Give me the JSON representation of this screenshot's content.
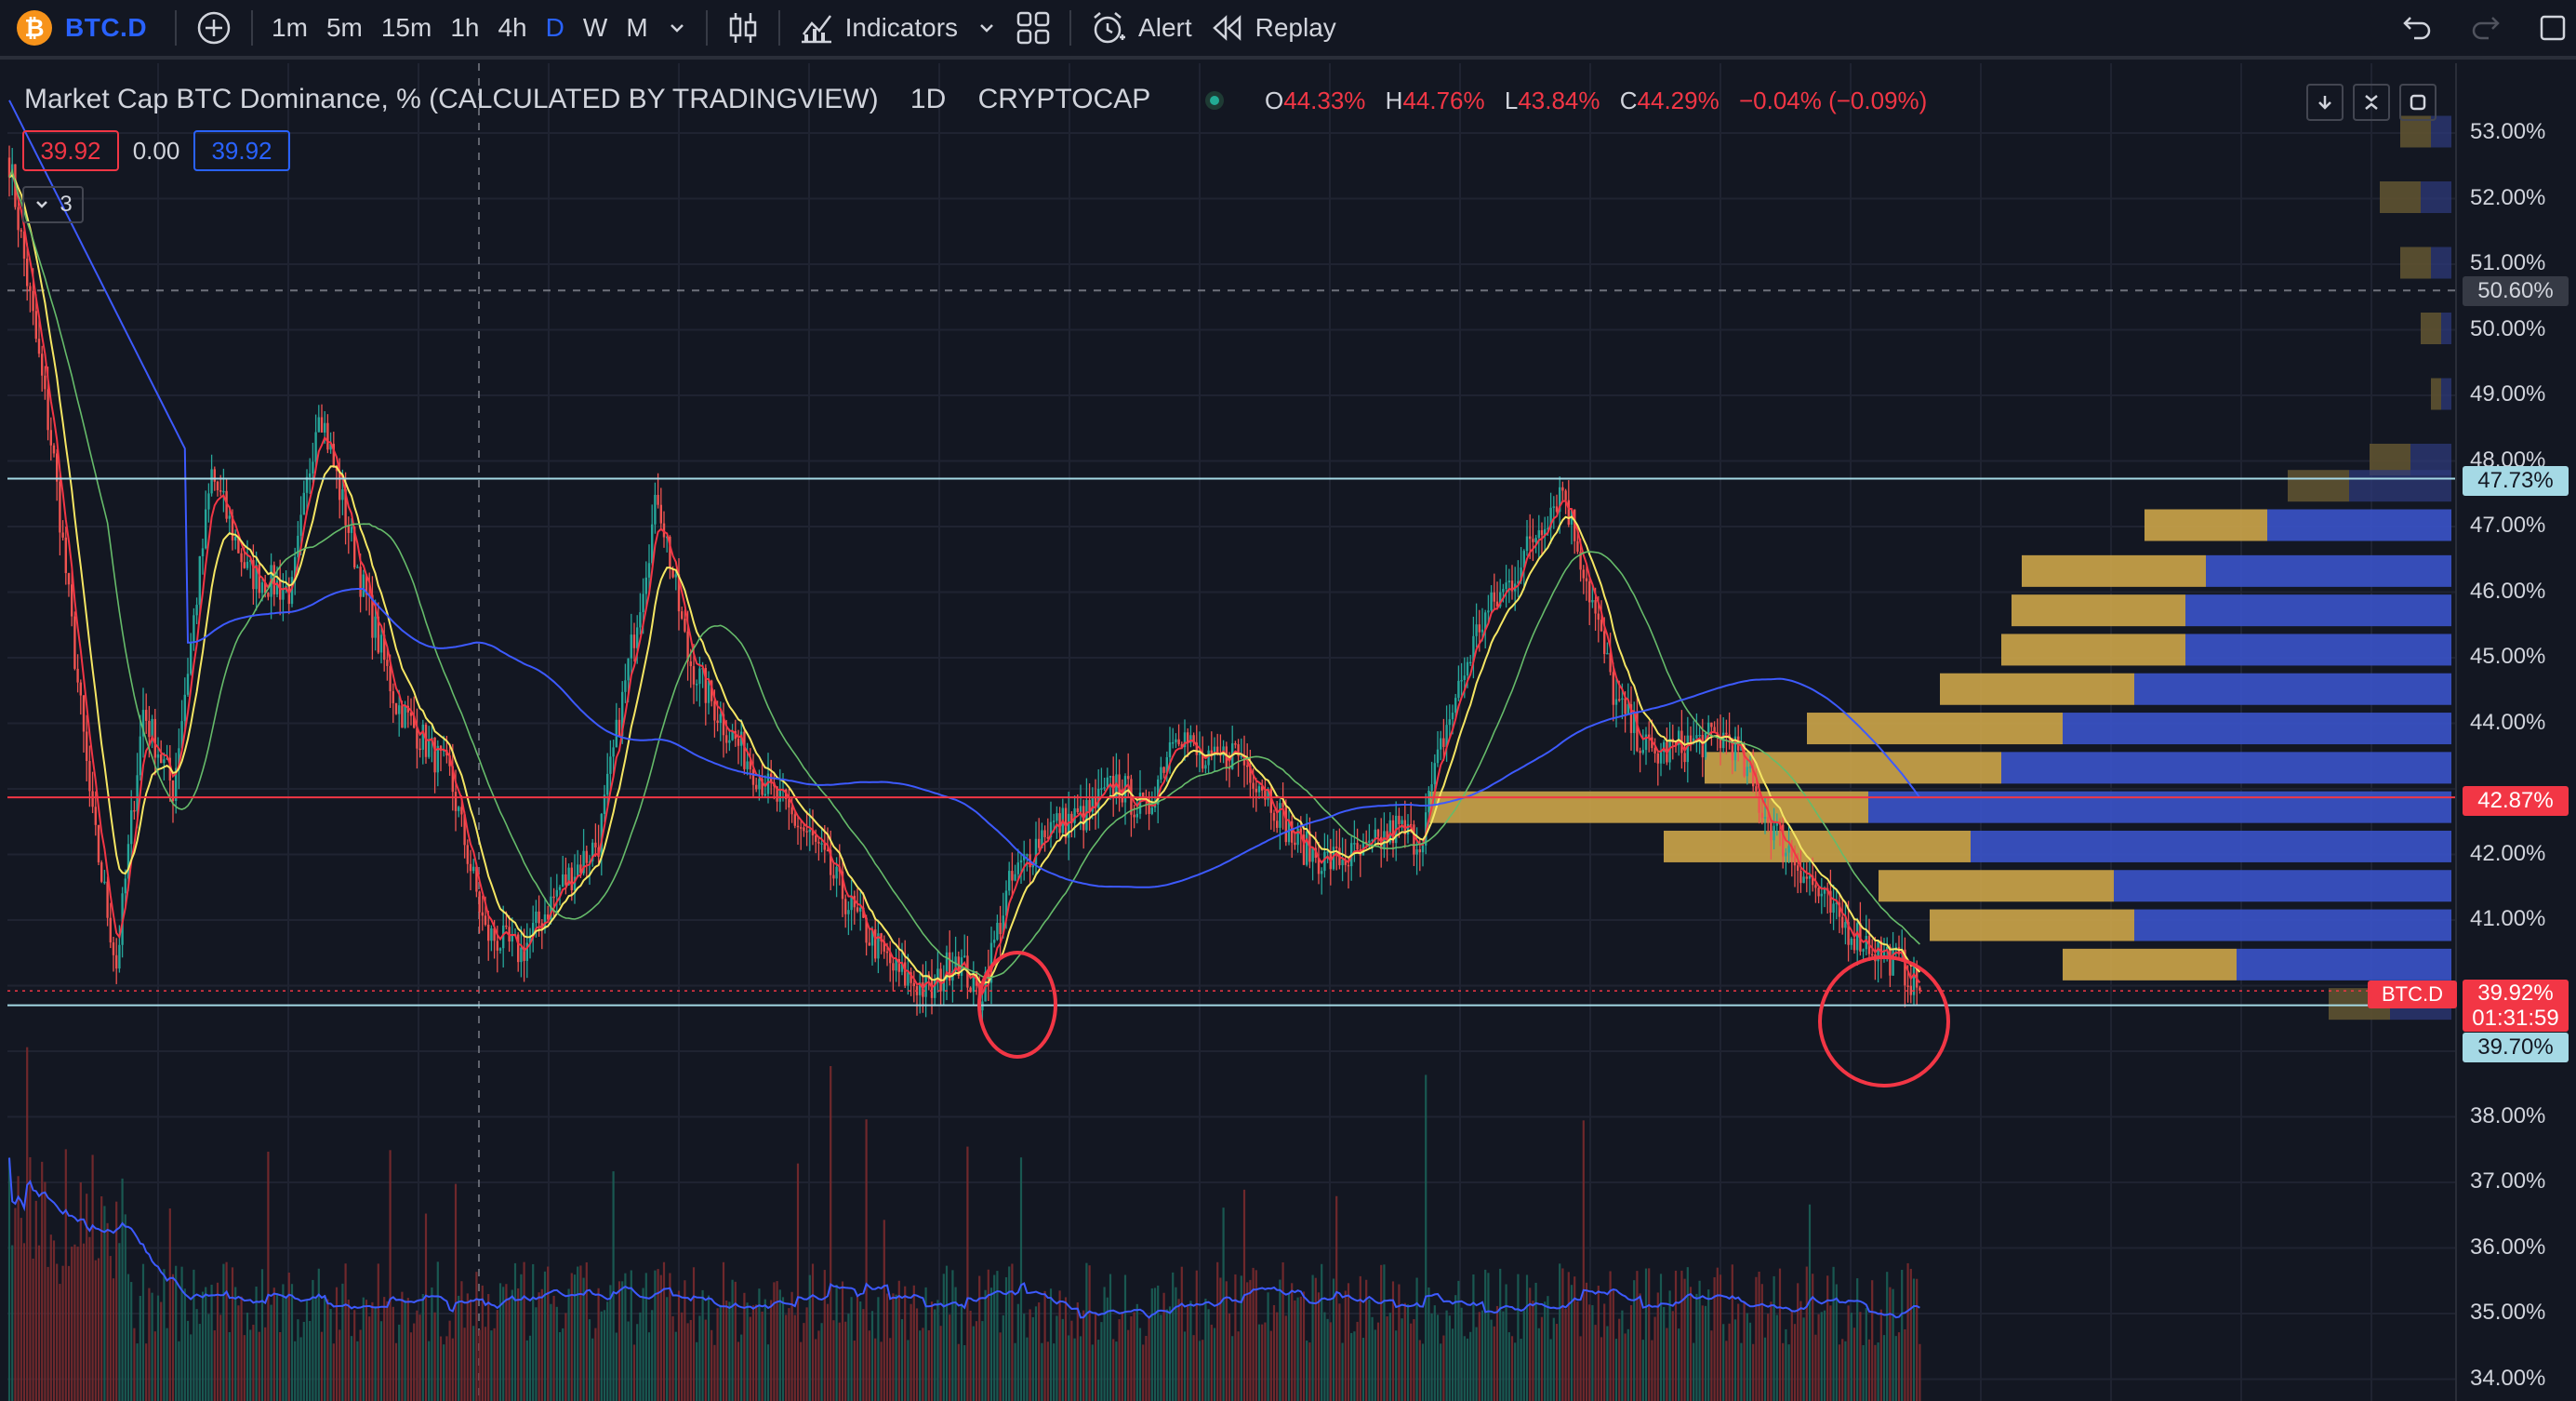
{
  "toolbar": {
    "symbol": "BTC.D",
    "logo_glyph": "₿",
    "intervals": [
      "1m",
      "5m",
      "15m",
      "1h",
      "4h",
      "D",
      "W",
      "M"
    ],
    "active_interval": "D",
    "indicators_label": "Indicators",
    "alert_label": "Alert",
    "replay_label": "Replay"
  },
  "legend": {
    "title": "Market Cap BTC Dominance, % (CALCULATED BY TRADINGVIEW)",
    "interval": "1D",
    "exchange": "CRYPTOCAP",
    "o_label": "O",
    "o": "44.33%",
    "h_label": "H",
    "h": "44.76%",
    "l_label": "L",
    "l": "43.84%",
    "c_label": "C",
    "c": "44.29%",
    "change": "−0.04% (−0.09%)",
    "sell_value": "39.92",
    "spread_value": "0.00",
    "buy_value": "39.92",
    "indicator_count": "3"
  },
  "price_axis": {
    "ticks": [
      "53.00%",
      "52.00%",
      "51.00%",
      "50.00%",
      "49.00%",
      "48.00%",
      "47.00%",
      "46.00%",
      "45.00%",
      "44.00%",
      "42.00%",
      "41.00%",
      "38.00%",
      "37.00%",
      "36.00%",
      "35.00%",
      "34.00%"
    ],
    "crosshair_label": "50.60%",
    "level_upper": "47.73%",
    "level_mid": "42.87%",
    "last_price": "39.92%",
    "countdown": "01:31:59",
    "level_lower": "39.70%",
    "symbol_tag": "BTC.D"
  },
  "colors": {
    "background": "#131722",
    "up": "#26a69a",
    "down": "#ef5350",
    "accent": "#2962ff",
    "ma_fast": "#f23645",
    "ma_mid": "#f5e663",
    "ma_slow": "#66bb6a",
    "ma_long": "#3d5afe",
    "level_line": "#a5d9e5",
    "vp_up": "#c9a349",
    "vp_down": "#3a53c6"
  },
  "chart_data": {
    "type": "candlestick",
    "title": "Market Cap BTC Dominance, % (CALCULATED BY TRADINGVIEW)",
    "ylim": [
      33.8,
      53.4
    ],
    "horizontal_levels": [
      47.73,
      42.87,
      39.7
    ],
    "last_price": 39.92,
    "close_path": [
      [
        0,
        52.6
      ],
      [
        15,
        48.0
      ],
      [
        28,
        42.5
      ],
      [
        36,
        40.3
      ],
      [
        45,
        44.2
      ],
      [
        55,
        43.0
      ],
      [
        68,
        47.8
      ],
      [
        80,
        46.3
      ],
      [
        95,
        46.0
      ],
      [
        104,
        48.9
      ],
      [
        118,
        46.2
      ],
      [
        130,
        44.3
      ],
      [
        148,
        43.2
      ],
      [
        160,
        40.8
      ],
      [
        172,
        40.5
      ],
      [
        185,
        41.5
      ],
      [
        198,
        42.2
      ],
      [
        210,
        45.4
      ],
      [
        218,
        47.5
      ],
      [
        228,
        45.0
      ],
      [
        240,
        44.0
      ],
      [
        255,
        43.0
      ],
      [
        270,
        42.2
      ],
      [
        285,
        41.0
      ],
      [
        298,
        40.2
      ],
      [
        310,
        39.9
      ],
      [
        318,
        40.5
      ],
      [
        326,
        39.8
      ],
      [
        336,
        41.5
      ],
      [
        348,
        42.4
      ],
      [
        362,
        42.6
      ],
      [
        372,
        43.1
      ],
      [
        382,
        42.6
      ],
      [
        392,
        44.0
      ],
      [
        402,
        43.3
      ],
      [
        412,
        43.6
      ],
      [
        422,
        43.0
      ],
      [
        432,
        42.2
      ],
      [
        442,
        41.9
      ],
      [
        456,
        42.0
      ],
      [
        466,
        42.4
      ],
      [
        474,
        42.2
      ],
      [
        482,
        43.8
      ],
      [
        494,
        45.5
      ],
      [
        505,
        46.2
      ],
      [
        514,
        47.0
      ],
      [
        522,
        47.6
      ],
      [
        530,
        46.2
      ],
      [
        540,
        44.3
      ],
      [
        552,
        43.5
      ],
      [
        565,
        43.7
      ],
      [
        578,
        43.8
      ],
      [
        590,
        42.6
      ],
      [
        602,
        41.8
      ],
      [
        614,
        41.0
      ],
      [
        626,
        40.6
      ],
      [
        636,
        40.3
      ],
      [
        642,
        39.92
      ]
    ],
    "volume_profile": [
      {
        "price": 53.0,
        "up": 0.03,
        "down": 0.02
      },
      {
        "price": 52.0,
        "up": 0.04,
        "down": 0.03
      },
      {
        "price": 51.0,
        "up": 0.03,
        "down": 0.02
      },
      {
        "price": 50.0,
        "up": 0.02,
        "down": 0.01
      },
      {
        "price": 49.0,
        "up": 0.01,
        "down": 0.01
      },
      {
        "price": 48.0,
        "up": 0.04,
        "down": 0.04
      },
      {
        "price": 47.6,
        "up": 0.06,
        "down": 0.1
      },
      {
        "price": 47.0,
        "up": 0.12,
        "down": 0.18
      },
      {
        "price": 46.3,
        "up": 0.18,
        "down": 0.24
      },
      {
        "price": 45.7,
        "up": 0.17,
        "down": 0.26
      },
      {
        "price": 45.1,
        "up": 0.18,
        "down": 0.26
      },
      {
        "price": 44.5,
        "up": 0.19,
        "down": 0.31
      },
      {
        "price": 43.9,
        "up": 0.25,
        "down": 0.38
      },
      {
        "price": 43.3,
        "up": 0.29,
        "down": 0.44
      },
      {
        "price": 42.7,
        "up": 0.43,
        "down": 0.57
      },
      {
        "price": 42.1,
        "up": 0.3,
        "down": 0.47
      },
      {
        "price": 41.5,
        "up": 0.23,
        "down": 0.33
      },
      {
        "price": 40.9,
        "up": 0.2,
        "down": 0.31
      },
      {
        "price": 40.3,
        "up": 0.17,
        "down": 0.21
      },
      {
        "price": 39.7,
        "up": 0.06,
        "down": 0.06
      }
    ]
  }
}
